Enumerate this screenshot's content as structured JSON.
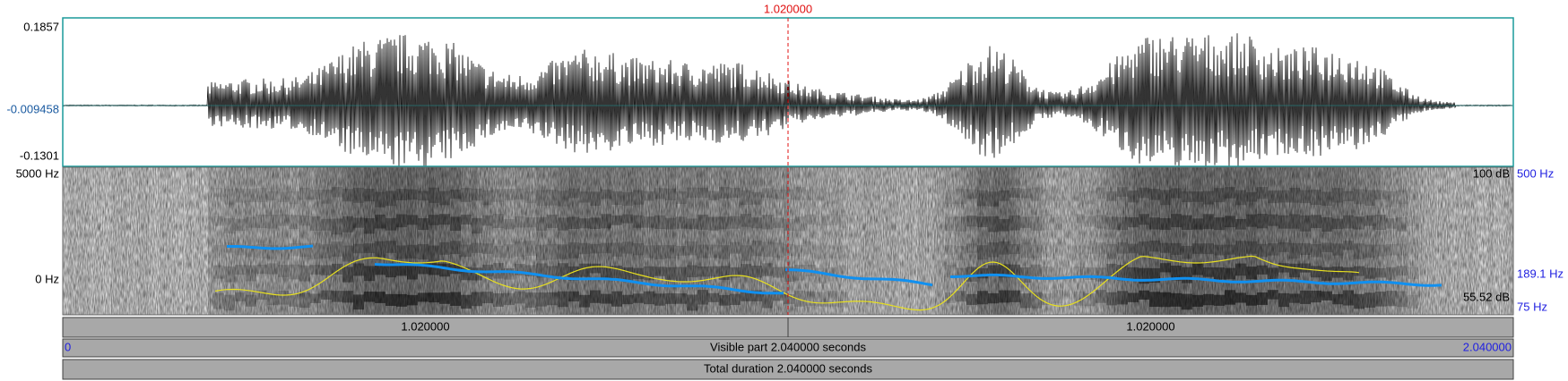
{
  "waveform": {
    "max_label": "0.1857",
    "mid_label": "-0.009458",
    "min_label": "-0.1301"
  },
  "cursor": {
    "time": "1.020000"
  },
  "spectrogram": {
    "top_freq": "5000 Hz",
    "bottom_freq": "0 Hz",
    "top_db": "100 dB",
    "bottom_db": "55.52 dB",
    "pitch_top": "500 Hz",
    "pitch_mid": "189.1 Hz",
    "pitch_bottom": "75 Hz"
  },
  "bars": {
    "left_segment": "1.020000",
    "right_segment": "1.020000",
    "visible_start": "0",
    "visible_label": "Visible part 2.040000 seconds",
    "visible_end": "2.040000",
    "total_label": "Total duration 2.040000 seconds"
  }
}
